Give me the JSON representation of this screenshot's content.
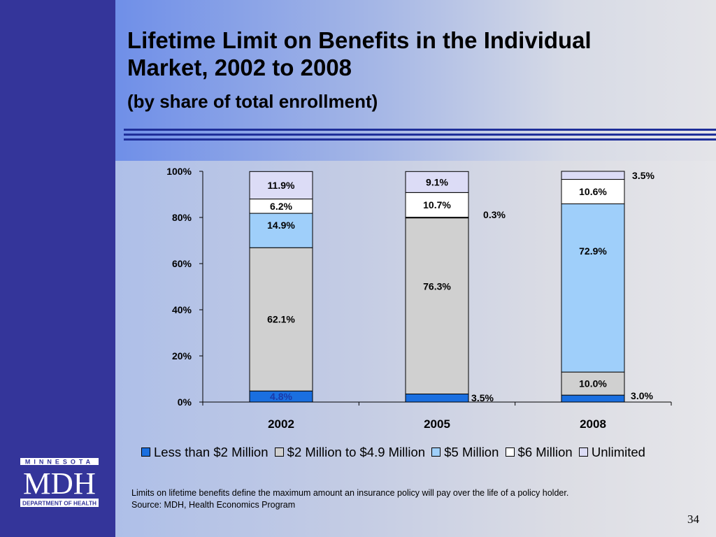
{
  "slide": {
    "title_line1": "Lifetime Limit on Benefits in the Individual",
    "title_line2": "Market, 2002 to 2008",
    "subtitle": "(by share of total enrollment)",
    "note_line1": "Limits on lifetime benefits define the maximum amount an insurance policy will pay over the life of a policy holder.",
    "note_line2": "Source:  MDH, Health Economics Program",
    "page_number": "34"
  },
  "logo": {
    "top_text": "MINNESOTA",
    "main_text": "MDH",
    "bottom_text": "DEPARTMENT OF HEALTH"
  },
  "colors": {
    "sidebar": "#34359a",
    "rule": "#1f2f9a",
    "less_than_2m": "#1a6fe0",
    "2m_to_4_9m": "#d0d0d0",
    "5m": "#9fcffa",
    "6m": "#ffffff",
    "unlimited": "#dcdcf6"
  },
  "chart_data": {
    "type": "bar",
    "stacked": true,
    "categories": [
      "2002",
      "2005",
      "2008"
    ],
    "y_ticks": [
      "0%",
      "20%",
      "40%",
      "60%",
      "80%",
      "100%"
    ],
    "ylim": [
      0,
      100
    ],
    "legend_position": "bottom",
    "series": [
      {
        "name": "Less than $2 Million",
        "values": [
          4.8,
          3.5,
          3.0
        ],
        "labels": [
          "4.8%",
          "3.5%",
          "3.0%"
        ]
      },
      {
        "name": "$2 Million to $4.9 Million",
        "values": [
          62.1,
          76.3,
          10.0
        ],
        "labels": [
          "62.1%",
          "76.3%",
          "10.0%"
        ]
      },
      {
        "name": "$5 Million",
        "values": [
          14.9,
          0.3,
          72.9
        ],
        "labels": [
          "14.9%",
          "0.3%",
          "72.9%"
        ]
      },
      {
        "name": "$6 Million",
        "values": [
          6.2,
          10.7,
          10.6
        ],
        "labels": [
          "6.2%",
          "10.7%",
          "10.6%"
        ]
      },
      {
        "name": "Unlimited",
        "values": [
          11.9,
          9.1,
          3.5
        ],
        "labels": [
          "11.9%",
          "9.1%",
          "3.5%"
        ]
      }
    ]
  }
}
